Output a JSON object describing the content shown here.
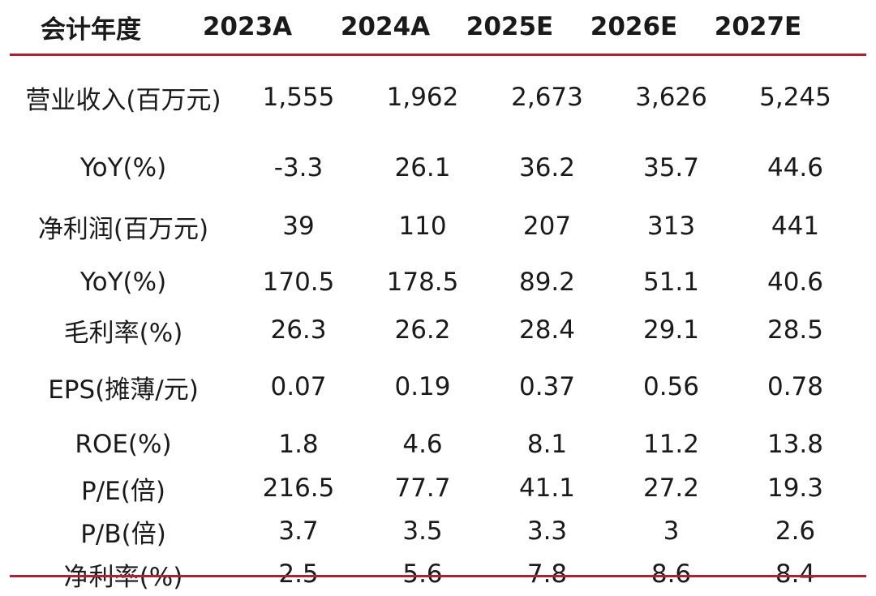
{
  "table": {
    "header": {
      "label": "会计年度",
      "years": [
        "2023A",
        "2024A",
        "2025E",
        "2026E",
        "2027E"
      ]
    },
    "rows": [
      {
        "label": "营业收入(百万元)",
        "values": [
          "1,555",
          "1,962",
          "2,673",
          "3,626",
          "5,245"
        ]
      },
      {
        "label": "YoY(%)",
        "values": [
          "-3.3",
          "26.1",
          "36.2",
          "35.7",
          "44.6"
        ]
      },
      {
        "label": "净利润(百万元)",
        "values": [
          "39",
          "110",
          "207",
          "313",
          "441"
        ]
      },
      {
        "label": "YoY(%)",
        "values": [
          "170.5",
          "178.5",
          "89.2",
          "51.1",
          "40.6"
        ]
      },
      {
        "label": "毛利率(%)",
        "values": [
          "26.3",
          "26.2",
          "28.4",
          "29.1",
          "28.5"
        ]
      },
      {
        "label": "EPS(摊薄/元)",
        "values": [
          "0.07",
          "0.19",
          "0.37",
          "0.56",
          "0.78"
        ]
      },
      {
        "label": "ROE(%)",
        "values": [
          "1.8",
          "4.6",
          "8.1",
          "11.2",
          "13.8"
        ]
      },
      {
        "label": "P/E(倍)",
        "values": [
          "216.5",
          "77.7",
          "41.1",
          "27.2",
          "19.3"
        ]
      },
      {
        "label": "P/B(倍)",
        "values": [
          "3.7",
          "3.5",
          "3.3",
          "3",
          "2.6"
        ]
      },
      {
        "label": "净利率(%)",
        "values": [
          "2.5",
          "5.6",
          "7.8",
          "8.6",
          "8.4"
        ]
      }
    ]
  },
  "colors": {
    "rule": "#b0212f",
    "text": "#1a1a1a"
  }
}
